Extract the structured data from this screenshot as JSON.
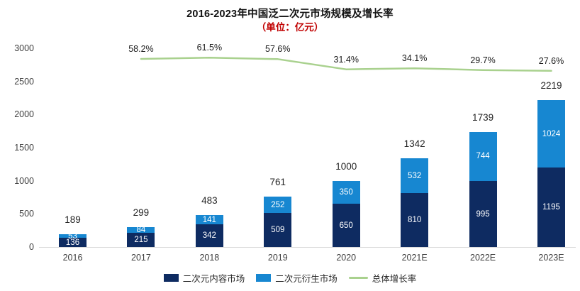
{
  "chart_data": {
    "type": "bar",
    "subtype": "stacked-bars-with-line",
    "title": "2016-2023年中国泛二次元市场规模及增长率",
    "subtitle": "（单位：亿元）",
    "subtitle_color": "#c00000",
    "categories": [
      "2016",
      "2017",
      "2018",
      "2019",
      "2020",
      "2021E",
      "2022E",
      "2023E"
    ],
    "series": [
      {
        "name": "二次元内容市场",
        "color": "#0e2b61",
        "values": [
          136,
          215,
          342,
          509,
          650,
          810,
          995,
          1195
        ]
      },
      {
        "name": "二次元衍生市场",
        "color": "#1787d1",
        "values": [
          53,
          84,
          141,
          252,
          350,
          532,
          744,
          1024
        ]
      }
    ],
    "totals": [
      189,
      299,
      483,
      761,
      1000,
      1342,
      1739,
      2219
    ],
    "line_series": {
      "name": "总体增长率",
      "color": "#a9d18e",
      "values": [
        null,
        58.2,
        61.5,
        57.6,
        31.4,
        34.1,
        29.7,
        27.6
      ],
      "labels": [
        "",
        "58.2%",
        "61.5%",
        "57.6%",
        "31.4%",
        "34.1%",
        "29.7%",
        "27.6%"
      ]
    },
    "y_axis": {
      "min": 0,
      "max": 3000,
      "ticks": [
        0,
        500,
        1000,
        1500,
        2000,
        2500,
        3000
      ]
    },
    "grid": false,
    "legend_position": "bottom",
    "label_colors": {
      "inside_bar": "#ffffff",
      "totals": "#262626",
      "axis": "#404040"
    }
  }
}
